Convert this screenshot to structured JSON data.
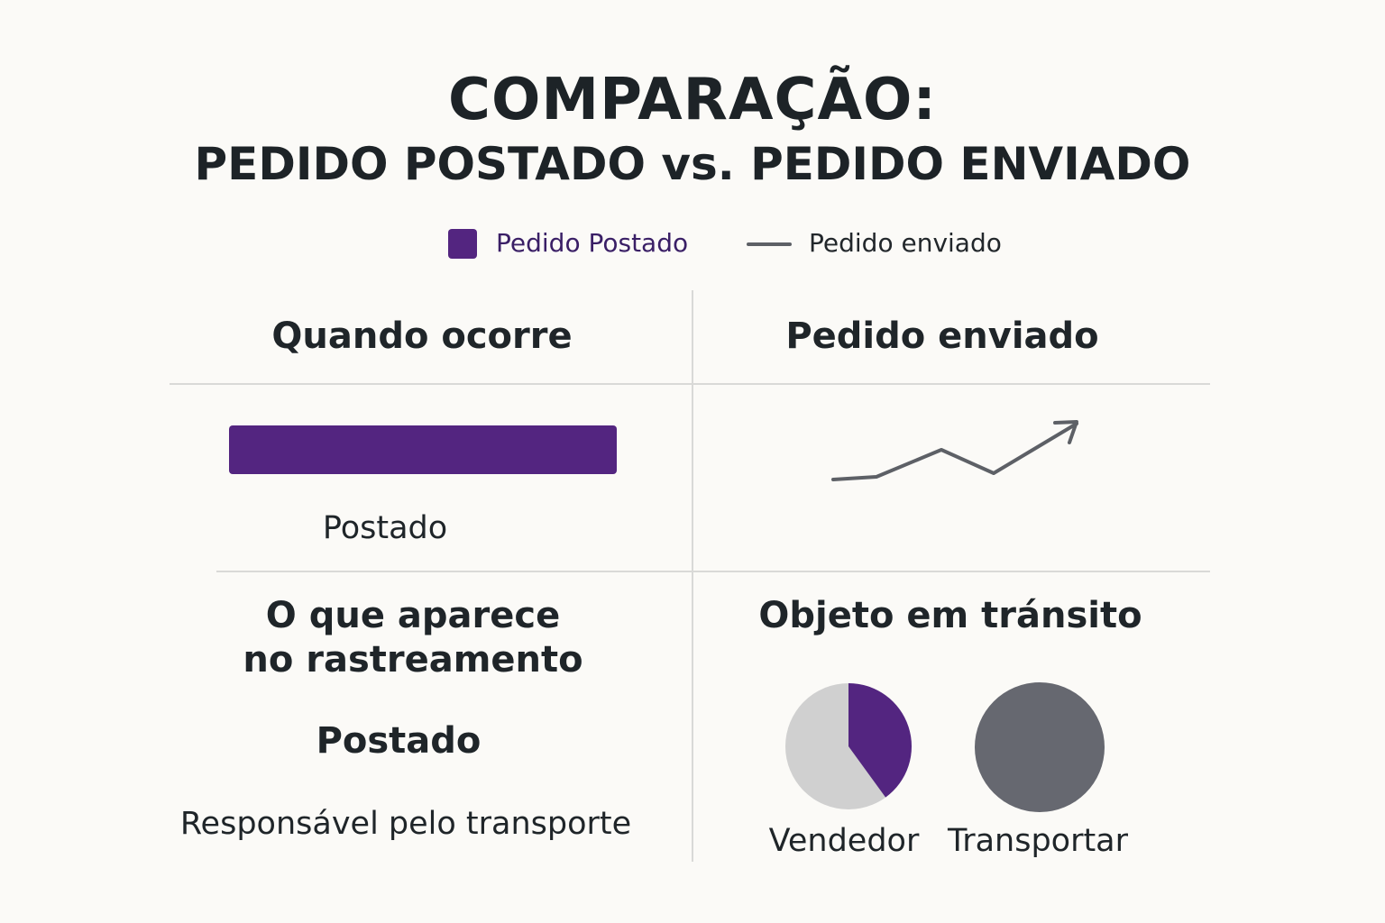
{
  "title": {
    "line1": "COMPARAÇÃO:",
    "line2": "PEDIDO POSTADO vs. PEDIDO ENVIADO"
  },
  "legend": {
    "item1": "Pedido Postado",
    "item2": "Pedido enviado"
  },
  "colors": {
    "purple": "#532580",
    "gray": "#5d6066",
    "light_gray": "#d0d0d0",
    "dark_gray_circle": "#666870"
  },
  "table": {
    "left_header": "Quando ocorre",
    "right_header": "Pedido enviado",
    "bar_label": "Postado",
    "left_section_title": [
      "O que aparece",
      "no rastreamento"
    ],
    "left_status": "Postado",
    "left_responsible": "Responsável pelo transporte",
    "right_section_title": "Objeto em tránsito",
    "pie_label_1": "Vendedor",
    "pie_label_2": "Transportar"
  },
  "icons": {
    "trend": "trend-arrow-icon",
    "pie": "pie-icon",
    "circle": "circle-icon"
  },
  "pie": {
    "purple_share": 0.4
  }
}
